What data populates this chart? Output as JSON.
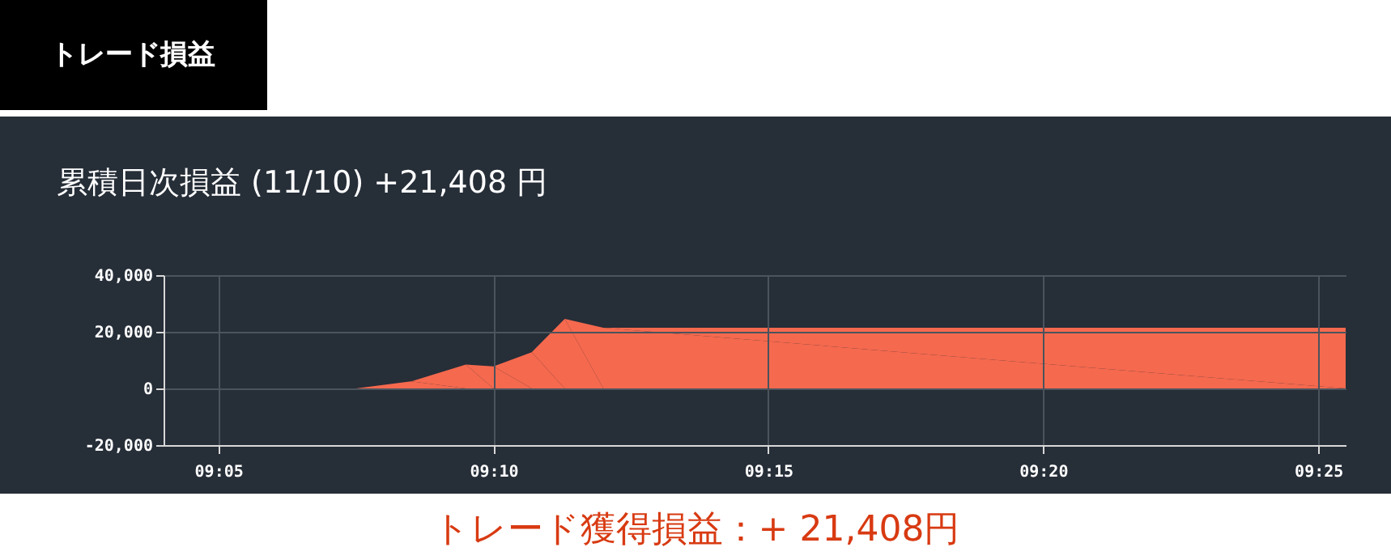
{
  "chart_data": {
    "type": "area",
    "title": "トレード損益",
    "subtitle": "累積日次損益 (11/10) +21,408 円",
    "annotations": [
      "トレード獲得損益：+ 21,408円"
    ],
    "x": [
      9.0667,
      9.125,
      9.1417,
      9.1583,
      9.1667,
      9.1783,
      9.1883,
      9.2,
      9.425
    ],
    "series": [
      {
        "color": "#f5694e",
        "values": [
          0,
          0,
          2500,
          8400,
          7800,
          12800,
          24600,
          21408,
          21408
        ]
      }
    ],
    "xlim": [
      9.0667,
      9.425
    ],
    "xticks": [
      {
        "value": 9.0833,
        "label": "09:05"
      },
      {
        "value": 9.1667,
        "label": "09:10"
      },
      {
        "value": 9.25,
        "label": "09:15"
      },
      {
        "value": 9.3333,
        "label": "09:20"
      },
      {
        "value": 9.4167,
        "label": "09:25"
      }
    ],
    "ylim": [
      -20000,
      40000
    ],
    "yticks": [
      {
        "value": -20000,
        "label": "-20,000"
      },
      {
        "value": 0,
        "label": "0"
      },
      {
        "value": 20000,
        "label": "20,000"
      },
      {
        "value": 40000,
        "label": "40,000"
      }
    ],
    "grid": true
  }
}
